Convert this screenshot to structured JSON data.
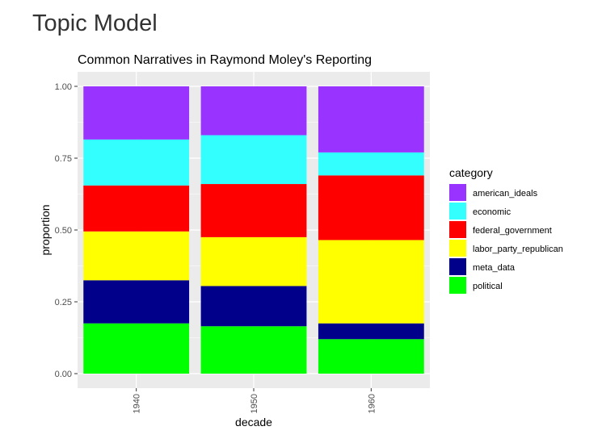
{
  "page": {
    "title": "Topic Model"
  },
  "chart_data": {
    "type": "bar",
    "stacked": true,
    "title": "Common Narratives in Raymond Moley's Reporting",
    "xlabel": "decade",
    "ylabel": "proportion",
    "ylim": [
      0,
      1
    ],
    "yticks": [
      "0.00",
      "0.25",
      "0.50",
      "0.75",
      "1.00"
    ],
    "grid": true,
    "legend_position": "right",
    "legend_title": "category",
    "categories": [
      "1940",
      "1950",
      "1960"
    ],
    "series": [
      {
        "name": "political",
        "color": "#00ff00",
        "values": [
          0.175,
          0.165,
          0.12
        ]
      },
      {
        "name": "meta_data",
        "color": "#00008b",
        "values": [
          0.15,
          0.14,
          0.055
        ]
      },
      {
        "name": "labor_party_republican",
        "color": "#ffff00",
        "values": [
          0.17,
          0.17,
          0.29
        ]
      },
      {
        "name": "federal_government",
        "color": "#ff0000",
        "values": [
          0.16,
          0.185,
          0.225
        ]
      },
      {
        "name": "economic",
        "color": "#33ffff",
        "values": [
          0.16,
          0.17,
          0.08
        ]
      },
      {
        "name": "american_ideals",
        "color": "#9933ff",
        "values": [
          0.185,
          0.17,
          0.23
        ]
      }
    ],
    "legend_order": [
      "american_ideals",
      "economic",
      "federal_government",
      "labor_party_republican",
      "meta_data",
      "political"
    ]
  }
}
